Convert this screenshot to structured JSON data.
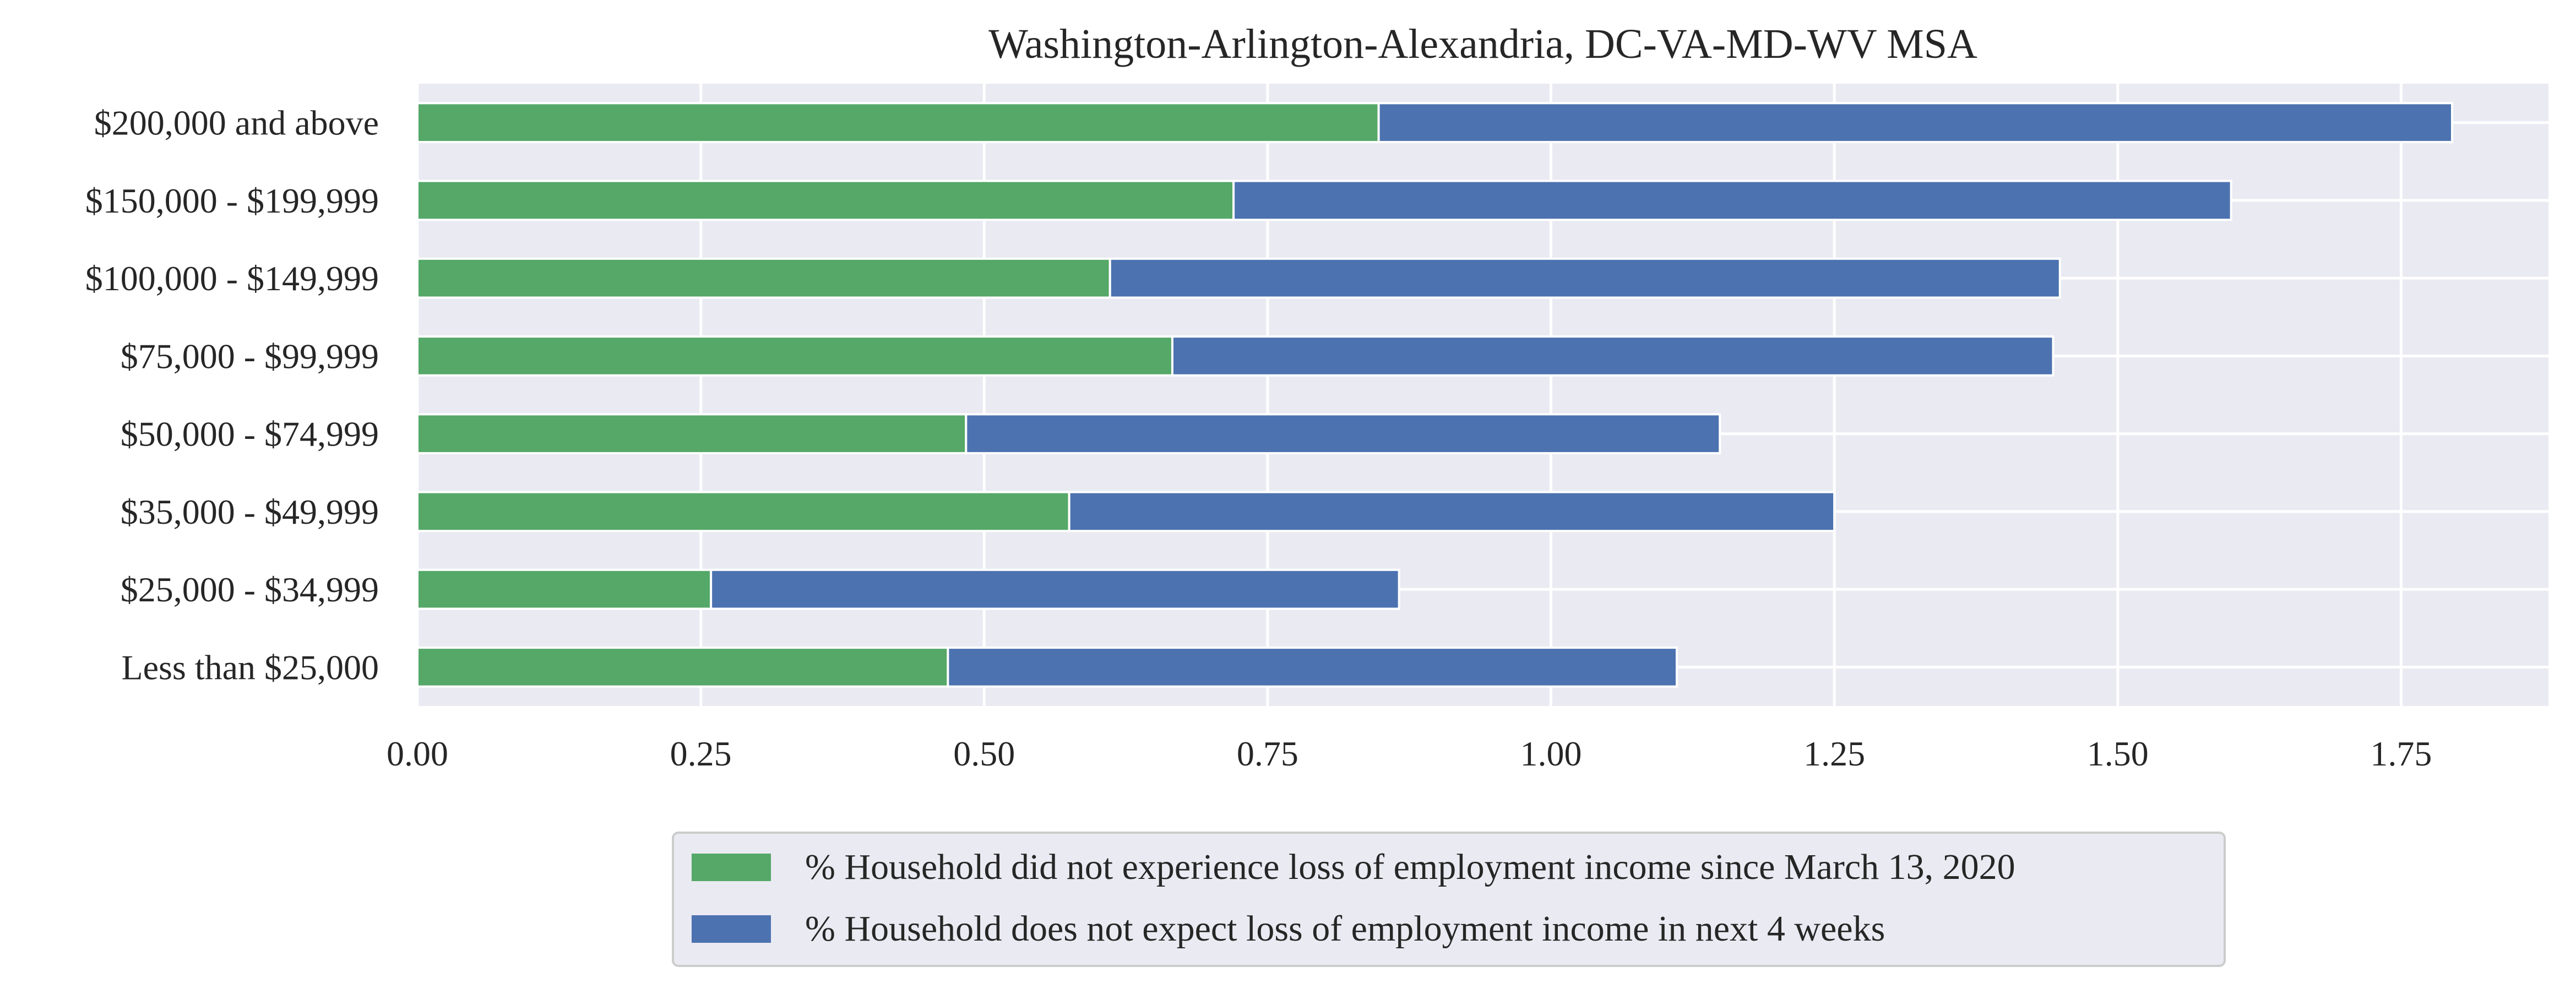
{
  "chart_data": {
    "type": "bar",
    "orientation": "horizontal",
    "stacked": true,
    "title": "Washington-Arlington-Alexandria, DC-VA-MD-WV MSA",
    "xlabel": "",
    "ylabel": "",
    "xlim": [
      0,
      1.88
    ],
    "xticks": [
      "0.00",
      "0.25",
      "0.50",
      "0.75",
      "1.00",
      "1.25",
      "1.50",
      "1.75"
    ],
    "grid": true,
    "legend_position": "bottom-center",
    "categories": [
      "Less than $25,000",
      "$25,000 - $34,999",
      "$35,000 - $49,999",
      "$50,000 - $74,999",
      "$75,000 - $99,999",
      "$100,000 - $149,999",
      "$150,000 - $199,999",
      "$200,000 and above"
    ],
    "series": [
      {
        "name": "% Household did not experience loss of employment income since March 13, 2020",
        "color": "#55a868",
        "values": [
          0.468,
          0.259,
          0.575,
          0.484,
          0.666,
          0.611,
          0.72,
          0.848
        ]
      },
      {
        "name": "% Household does not expect loss of employment income in next 4 weeks",
        "color": "#4c72b0",
        "values": [
          0.643,
          0.607,
          0.675,
          0.665,
          0.777,
          0.838,
          0.88,
          0.947
        ]
      }
    ]
  },
  "colors": {
    "plot_background": "#eaeaf2",
    "grid": "#ffffff",
    "text": "#262626"
  }
}
